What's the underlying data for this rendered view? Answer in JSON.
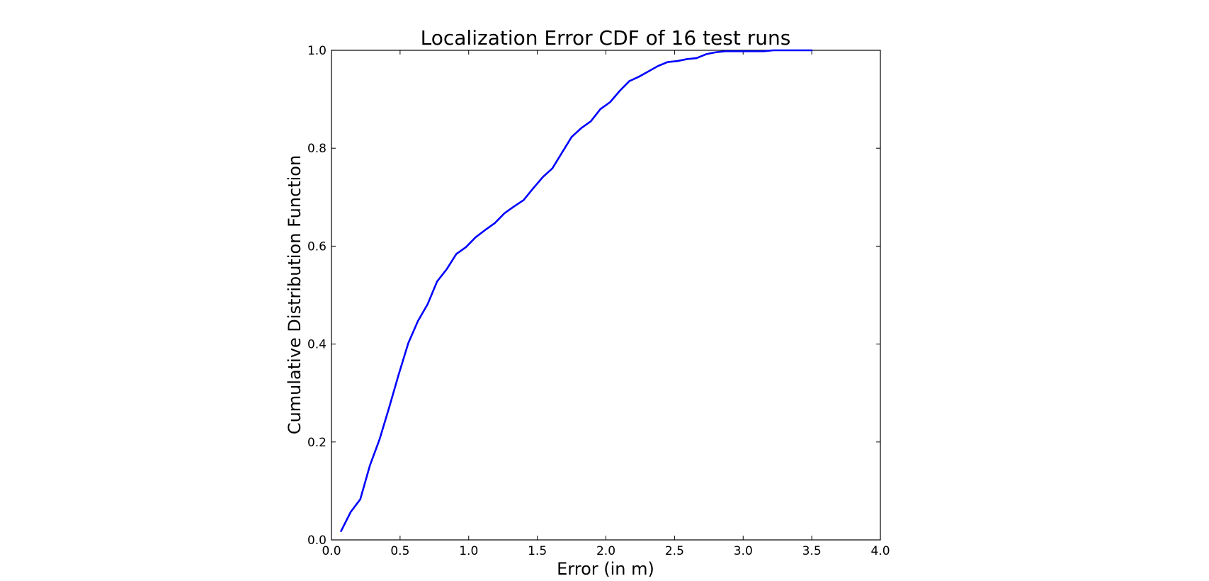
{
  "chart_data": {
    "type": "line",
    "title": "Localization Error CDF of 16 test runs",
    "xlabel": "Error (in m)",
    "ylabel": "Cumulative Distribution Function",
    "xlim": [
      0.0,
      4.0
    ],
    "ylim": [
      0.0,
      1.0
    ],
    "xticks": [
      "0.0",
      "0.5",
      "1.0",
      "1.5",
      "2.0",
      "2.5",
      "3.0",
      "3.5",
      "4.0"
    ],
    "yticks": [
      "0.0",
      "0.2",
      "0.4",
      "0.6",
      "0.8",
      "1.0"
    ],
    "grid": false,
    "line_color": "#0000ff",
    "series": [
      {
        "x": [
          0.07,
          0.14,
          0.21,
          0.28,
          0.35,
          0.42,
          0.49,
          0.56,
          0.63,
          0.7,
          0.77,
          0.84,
          0.91,
          0.98,
          1.05,
          1.12,
          1.19,
          1.26,
          1.33,
          1.4,
          1.47,
          1.54,
          1.61,
          1.68,
          1.75,
          1.82,
          1.89,
          1.96,
          2.03,
          2.1,
          2.17,
          2.24,
          2.31,
          2.38,
          2.45,
          2.52,
          2.59,
          2.66,
          2.73,
          2.8,
          2.87,
          2.94,
          3.01,
          3.08,
          3.15,
          3.22,
          3.29,
          3.36,
          3.43,
          3.5
        ],
        "values": [
          0.018,
          0.057,
          0.083,
          0.152,
          0.205,
          0.27,
          0.338,
          0.402,
          0.447,
          0.481,
          0.528,
          0.553,
          0.584,
          0.598,
          0.618,
          0.633,
          0.647,
          0.667,
          0.681,
          0.694,
          0.718,
          0.741,
          0.759,
          0.791,
          0.823,
          0.841,
          0.855,
          0.88,
          0.894,
          0.917,
          0.937,
          0.946,
          0.957,
          0.968,
          0.976,
          0.978,
          0.982,
          0.984,
          0.992,
          0.996,
          0.998,
          0.998,
          0.998,
          0.998,
          0.998,
          1.0,
          1.0,
          1.0,
          1.0,
          1.0
        ]
      }
    ]
  }
}
